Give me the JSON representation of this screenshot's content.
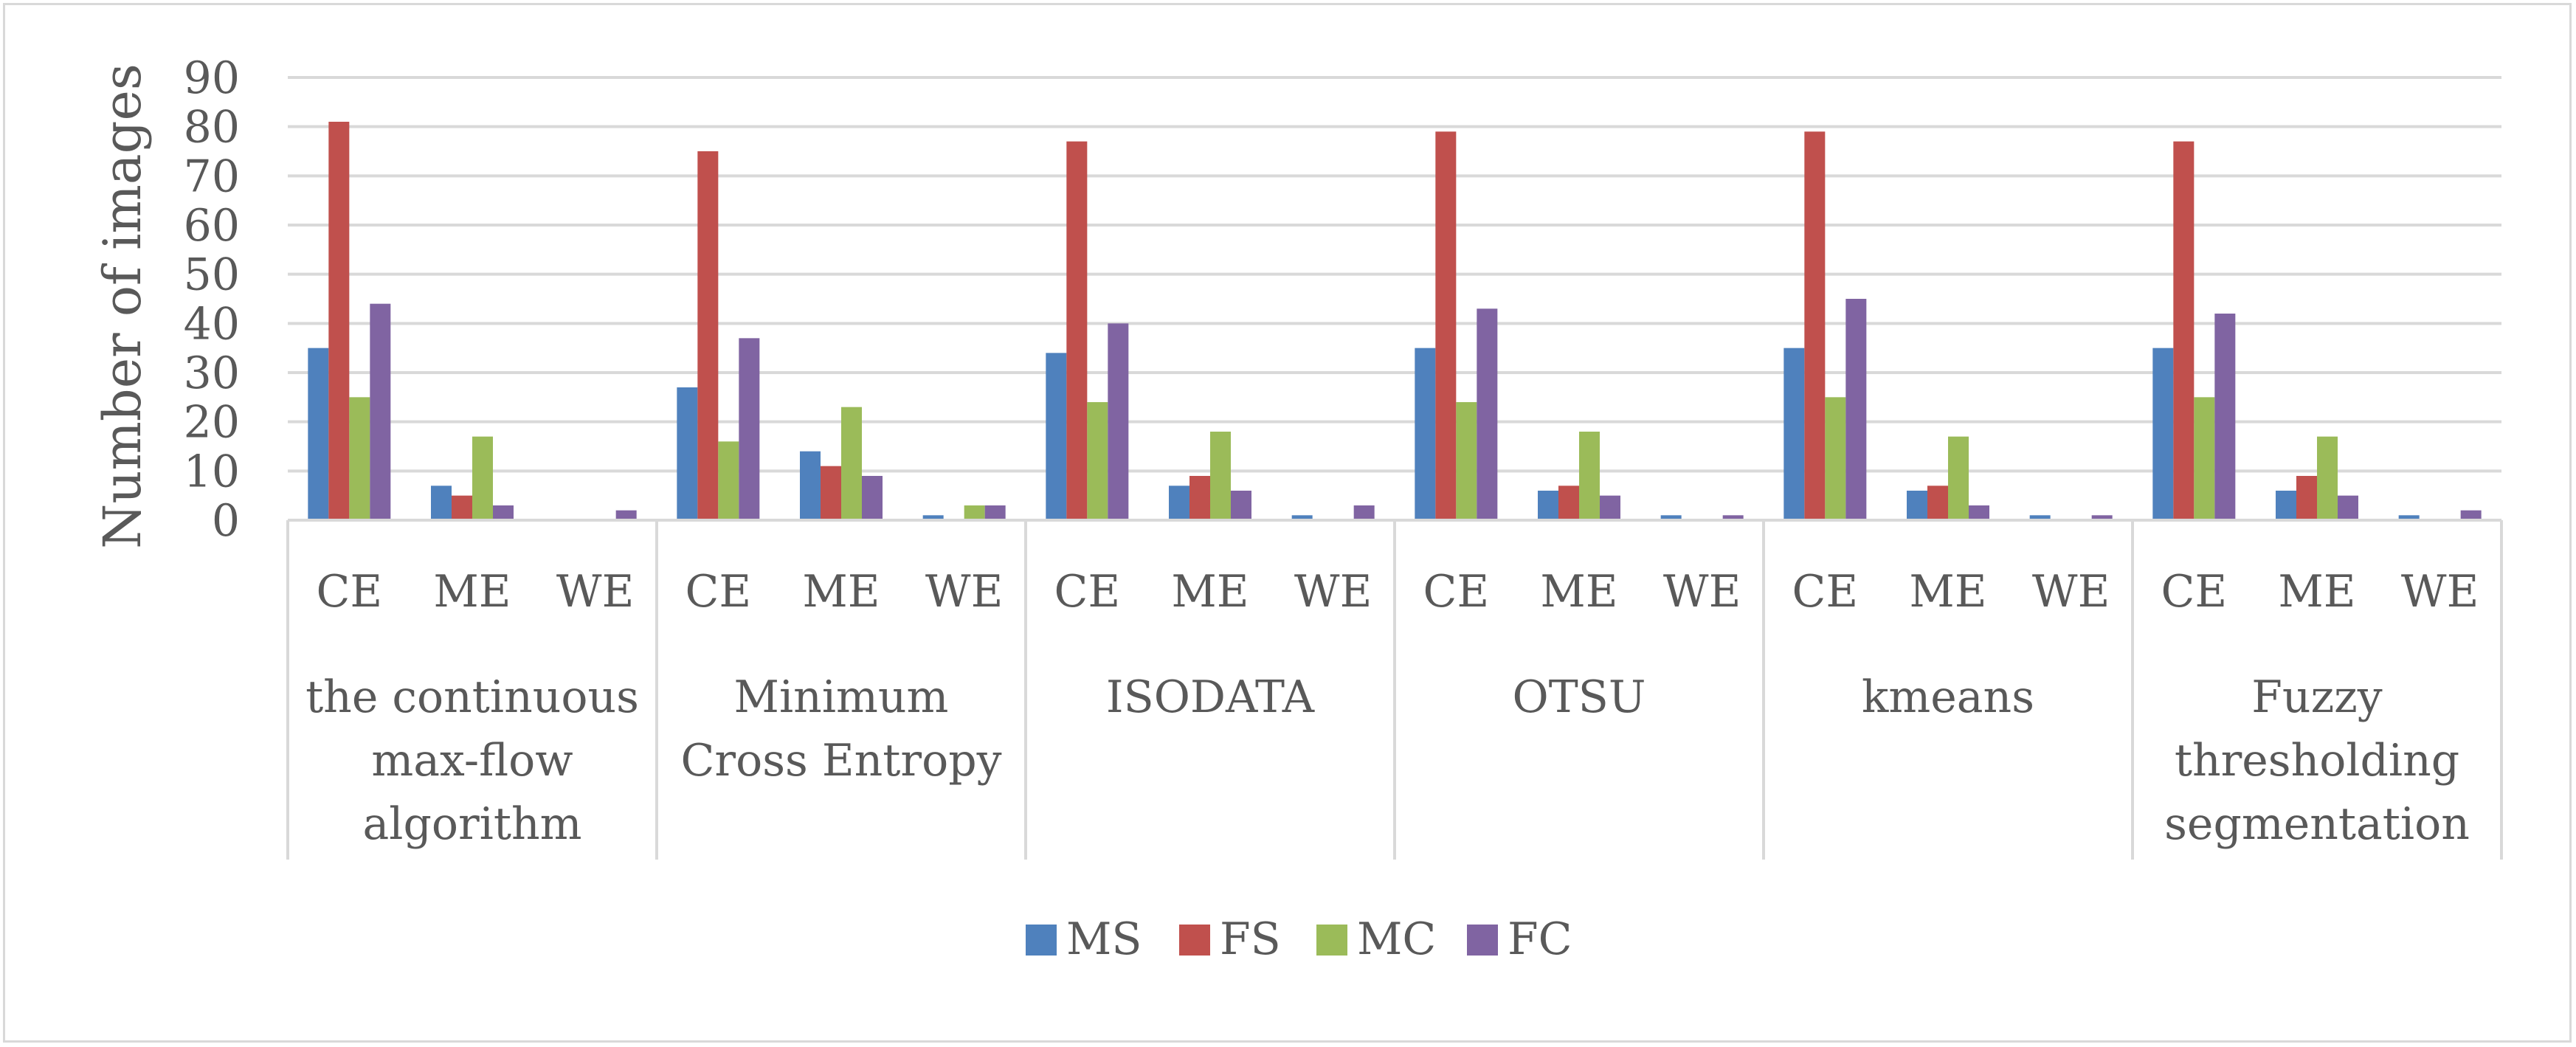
{
  "chart_data": {
    "type": "bar",
    "title": "",
    "xlabel": "",
    "ylabel": "Number of images",
    "ylim": [
      0,
      90
    ],
    "yticks": [
      0,
      10,
      20,
      30,
      40,
      50,
      60,
      70,
      80,
      90
    ],
    "grid": true,
    "legend_position": "bottom-center",
    "groups": [
      {
        "label": "the continuous max-flow algorithm",
        "label_lines": [
          "the continuous",
          "max-flow",
          "algorithm"
        ]
      },
      {
        "label": "Minimum Cross Entropy",
        "label_lines": [
          "Minimum",
          "Cross Entropy"
        ]
      },
      {
        "label": "ISODATA",
        "label_lines": [
          "ISODATA"
        ]
      },
      {
        "label": "OTSU",
        "label_lines": [
          "OTSU"
        ]
      },
      {
        "label": "kmeans",
        "label_lines": [
          "kmeans"
        ]
      },
      {
        "label": "Fuzzy thresholding segmentation",
        "label_lines": [
          "Fuzzy",
          "thresholding",
          "segmentation"
        ]
      }
    ],
    "subcategories": [
      "CE",
      "ME",
      "WE"
    ],
    "series": [
      {
        "name": "MS",
        "color": "#4f81bd",
        "values": [
          35,
          7,
          0,
          27,
          14,
          1,
          34,
          7,
          1,
          35,
          6,
          1,
          35,
          6,
          1,
          35,
          6,
          1
        ]
      },
      {
        "name": "FS",
        "color": "#c0504d",
        "values": [
          81,
          5,
          0,
          75,
          11,
          0,
          77,
          9,
          0,
          79,
          7,
          0,
          79,
          7,
          0,
          77,
          9,
          0
        ]
      },
      {
        "name": "MC",
        "color": "#9bbb59",
        "values": [
          25,
          17,
          0,
          16,
          23,
          3,
          24,
          18,
          0,
          24,
          18,
          0,
          25,
          17,
          0,
          25,
          17,
          0
        ]
      },
      {
        "name": "FC",
        "color": "#8064a2",
        "values": [
          44,
          3,
          2,
          37,
          9,
          3,
          40,
          6,
          3,
          43,
          5,
          1,
          45,
          3,
          1,
          42,
          5,
          2
        ]
      }
    ]
  }
}
